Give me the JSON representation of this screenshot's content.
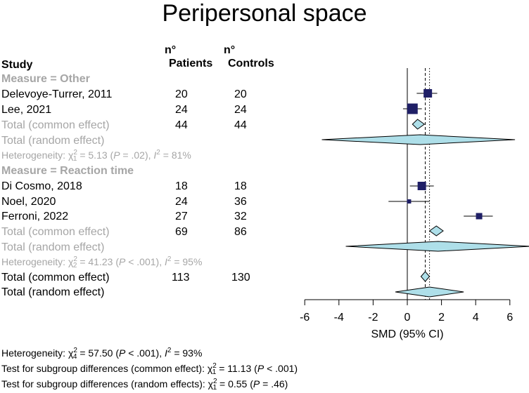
{
  "title": "Peripersonal space",
  "columns": {
    "study": "Study",
    "patients_line1": "n°",
    "patients_line2": "Patients",
    "controls_line1": "n°",
    "controls_line2": "Controls"
  },
  "groups": [
    {
      "label": "Measure = Other",
      "studies": [
        {
          "name": "Delevoye-Turrer, 2011",
          "patients": "20",
          "controls": "20"
        },
        {
          "name": "Lee, 2021",
          "patients": "24",
          "controls": "24"
        }
      ],
      "common": {
        "label": "Total (common effect)",
        "patients": "44",
        "controls": "44"
      },
      "random": {
        "label": "Total (random effect)"
      },
      "heterogeneity": {
        "prefix": "Heterogeneity: ",
        "chi": "χ",
        "sub": "1",
        "sup": "2",
        "mid": " = 5.13 (",
        "p": "P",
        "pval": " = .02), ",
        "i": "I",
        "isup": "2",
        "ival": " = 81%"
      }
    },
    {
      "label": "Measure = Reaction time",
      "studies": [
        {
          "name": "Di Cosmo, 2018",
          "patients": "18",
          "controls": "18"
        },
        {
          "name": "Noel, 2020",
          "patients": "24",
          "controls": "36"
        },
        {
          "name": "Ferroni, 2022",
          "patients": "27",
          "controls": "32"
        }
      ],
      "common": {
        "label": "Total (common effect)",
        "patients": "69",
        "controls": "86"
      },
      "random": {
        "label": "Total (random effect)"
      },
      "heterogeneity": {
        "prefix": "Heterogeneity: ",
        "chi": "χ",
        "sub": "2",
        "sup": "2",
        "mid": " = 41.23 (",
        "p": "P",
        "pval": " < .001), ",
        "i": "I",
        "isup": "2",
        "ival": " = 95%"
      }
    }
  ],
  "overall": {
    "common": {
      "label": "Total (common effect)",
      "patients": "113",
      "controls": "130"
    },
    "random": {
      "label": "Total (random effect)"
    }
  },
  "footer": {
    "het": {
      "prefix": "Heterogeneity: ",
      "chi": "χ",
      "sub": "4",
      "sup": "2",
      "mid": " = 57.50 (",
      "p": "P",
      "pval": " < .001), ",
      "i": "I",
      "isup": "2",
      "ival": " = 93%"
    },
    "subgroup_common": {
      "prefix": "Test for subgroup differences (common effect): ",
      "chi": "χ",
      "sub": "1",
      "sup": "2",
      "mid": " = 11.13 (",
      "p": "P",
      "pval": " < .001)"
    },
    "subgroup_random": {
      "prefix": "Test for subgroup differences (random effects): ",
      "chi": "χ",
      "sub": "1",
      "sup": "2",
      "mid": " = 0.55 (",
      "p": "P",
      "pval": " = .46)"
    }
  },
  "chart_data": {
    "type": "forest",
    "title": "Peripersonal space",
    "xlabel": "SMD (95% CI)",
    "xlim": [
      -6,
      6
    ],
    "ticks": [
      "-6",
      "-4",
      "-2",
      "0",
      "2",
      "4",
      "6"
    ],
    "tick_values": [
      -6,
      -4,
      -2,
      0,
      2,
      4,
      6
    ],
    "null_line": 0,
    "common_overall": 1.05,
    "random_overall": 1.3,
    "rows": [
      {
        "id": "delevoye",
        "kind": "study",
        "est": 1.2,
        "lo": 0.55,
        "hi": 1.75,
        "weight": 3
      },
      {
        "id": "lee",
        "kind": "study",
        "est": 0.3,
        "lo": -0.25,
        "hi": 0.85,
        "weight": 4
      },
      {
        "id": "g1-common",
        "kind": "diamond",
        "est": 0.6,
        "lo": 0.3,
        "hi": 1.0,
        "style": "common"
      },
      {
        "id": "g1-random",
        "kind": "diamond",
        "est": 0.75,
        "lo": -5.0,
        "hi": 6.3,
        "style": "random"
      },
      {
        "id": "dicosmo",
        "kind": "study",
        "est": 0.85,
        "lo": 0.15,
        "hi": 1.55,
        "weight": 3
      },
      {
        "id": "noel",
        "kind": "study",
        "est": 0.1,
        "lo": -1.1,
        "hi": 1.3,
        "weight": 1
      },
      {
        "id": "ferroni",
        "kind": "study",
        "est": 4.2,
        "lo": 3.3,
        "hi": 5.0,
        "weight": 2
      },
      {
        "id": "g2-common",
        "kind": "diamond",
        "est": 1.7,
        "lo": 1.3,
        "hi": 2.1,
        "style": "common"
      },
      {
        "id": "g2-random",
        "kind": "diamond",
        "est": 1.8,
        "lo": -3.6,
        "hi": 7.2,
        "style": "random"
      },
      {
        "id": "total-common",
        "kind": "diamond",
        "est": 1.05,
        "lo": 0.8,
        "hi": 1.3,
        "style": "common"
      },
      {
        "id": "total-random",
        "kind": "diamond",
        "est": 1.3,
        "lo": -0.7,
        "hi": 3.3,
        "style": "random"
      }
    ],
    "colors": {
      "square": "#1f1f66",
      "diamond_fill": "#aedfe9",
      "line": "#000000"
    }
  }
}
